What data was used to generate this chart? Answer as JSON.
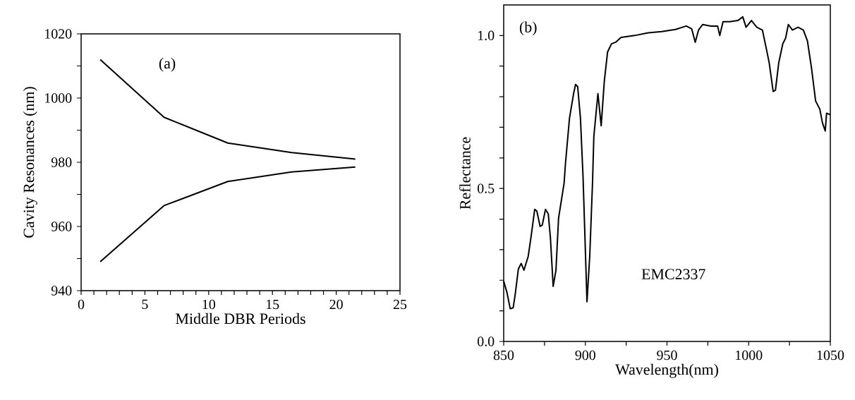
{
  "chart_data": [
    {
      "type": "line",
      "xlabel": "Middle DBR Periods",
      "ylabel": "Cavity Resonances (nm)",
      "annotations": [
        "(a)"
      ],
      "xlim": [
        0,
        25
      ],
      "ylim": [
        940,
        1020
      ],
      "xticks": [
        0,
        {
          "value": 1,
          "label": null
        },
        {
          "value": 2,
          "label": null
        },
        {
          "value": 3,
          "label": null
        },
        {
          "value": 4,
          "label": null
        },
        5,
        {
          "value": 6,
          "label": null
        },
        {
          "value": 7,
          "label": null
        },
        {
          "value": 8,
          "label": null
        },
        {
          "value": 9,
          "label": null
        },
        10,
        {
          "value": 11,
          "label": null
        },
        {
          "value": 12,
          "label": null
        },
        {
          "value": 13,
          "label": null
        },
        {
          "value": 14,
          "label": null
        },
        15,
        {
          "value": 16,
          "label": null
        },
        {
          "value": 17,
          "label": null
        },
        {
          "value": 18,
          "label": null
        },
        {
          "value": 19,
          "label": null
        },
        20,
        {
          "value": 21,
          "label": null
        },
        {
          "value": 22,
          "label": null
        },
        {
          "value": 23,
          "label": null
        },
        {
          "value": 24,
          "label": null
        },
        25
      ],
      "yticks": [
        940,
        {
          "value": 950,
          "label": null
        },
        960,
        {
          "value": 970,
          "label": null
        },
        980,
        {
          "value": 990,
          "label": null
        },
        1000,
        {
          "value": 1010,
          "label": null
        },
        1020
      ],
      "x": [
        1.5,
        6.5,
        11.5,
        16.5,
        21.5
      ],
      "series": [
        {
          "color": "#000000",
          "values": [
            1012,
            994,
            986,
            983,
            981
          ]
        },
        {
          "color": "#000000",
          "values": [
            949,
            966.5,
            974,
            977,
            978.5
          ]
        }
      ]
    },
    {
      "type": "line",
      "xlabel": "Wavelength(nm)",
      "ylabel": "Reflectance",
      "annotations": [
        "(b)",
        "EMC2337"
      ],
      "xlim": [
        850,
        1050
      ],
      "ylim": [
        0,
        1.1
      ],
      "xticks": [
        850,
        {
          "value": 875,
          "label": null
        },
        900,
        {
          "value": 925,
          "label": null
        },
        950,
        {
          "value": 975,
          "label": null
        },
        1000,
        {
          "value": 1025,
          "label": null
        },
        1050
      ],
      "yticks": [
        {
          "value": 0,
          "label": "0.0"
        },
        {
          "value": 0.1,
          "label": null
        },
        {
          "value": 0.2,
          "label": null
        },
        {
          "value": 0.3,
          "label": null
        },
        {
          "value": 0.4,
          "label": null
        },
        {
          "value": 0.5,
          "label": "0.5"
        },
        {
          "value": 0.6,
          "label": null
        },
        {
          "value": 0.7,
          "label": null
        },
        {
          "value": 0.8,
          "label": null
        },
        {
          "value": 0.9,
          "label": null
        },
        {
          "value": 1,
          "label": "1.0"
        }
      ],
      "x": [
        850,
        852,
        854,
        855.8,
        857,
        859,
        860.7,
        862.4,
        865,
        866.7,
        869,
        870.3,
        872.3,
        873.6,
        875.6,
        877.3,
        878.6,
        880.3,
        882,
        883.6,
        887,
        887.8,
        890.3,
        892.8,
        894,
        895.3,
        897,
        898.6,
        901,
        902.7,
        904.4,
        905.2,
        907.7,
        909.7,
        911.6,
        913.6,
        916,
        918.5,
        921.9,
        930.2,
        938.5,
        946.8,
        955.2,
        961.8,
        965.1,
        967.3,
        969.3,
        971.8,
        976.8,
        981,
        982.3,
        984.3,
        988.5,
        993.4,
        996.4,
        998.4,
        1001.7,
        1005,
        1008.4,
        1010.9,
        1012.6,
        1015,
        1016.4,
        1018.4,
        1020.9,
        1022.6,
        1024.3,
        1026.8,
        1030.2,
        1033.5,
        1036,
        1038.5,
        1041,
        1043.6,
        1045.2,
        1046.9,
        1047.7,
        1050
      ],
      "series": [
        {
          "color": "#000000",
          "values": [
            0.197,
            0.16,
            0.107,
            0.11,
            0.152,
            0.237,
            0.255,
            0.233,
            0.278,
            0.34,
            0.432,
            0.426,
            0.376,
            0.38,
            0.432,
            0.417,
            0.34,
            0.18,
            0.233,
            0.403,
            0.518,
            0.58,
            0.73,
            0.81,
            0.84,
            0.833,
            0.73,
            0.536,
            0.13,
            0.28,
            0.52,
            0.67,
            0.81,
            0.705,
            0.85,
            0.946,
            0.973,
            0.978,
            0.994,
            1.0,
            1.009,
            1.013,
            1.02,
            1.031,
            1.022,
            0.978,
            1.018,
            1.036,
            1.031,
            1.031,
            1.0,
            1.045,
            1.045,
            1.049,
            1.061,
            1.027,
            1.049,
            1.027,
            1.018,
            0.955,
            0.91,
            0.817,
            0.821,
            0.91,
            0.973,
            0.991,
            1.036,
            1.018,
            1.027,
            1.018,
            0.982,
            0.893,
            0.786,
            0.759,
            0.714,
            0.688,
            0.746,
            0.741
          ]
        }
      ]
    }
  ]
}
